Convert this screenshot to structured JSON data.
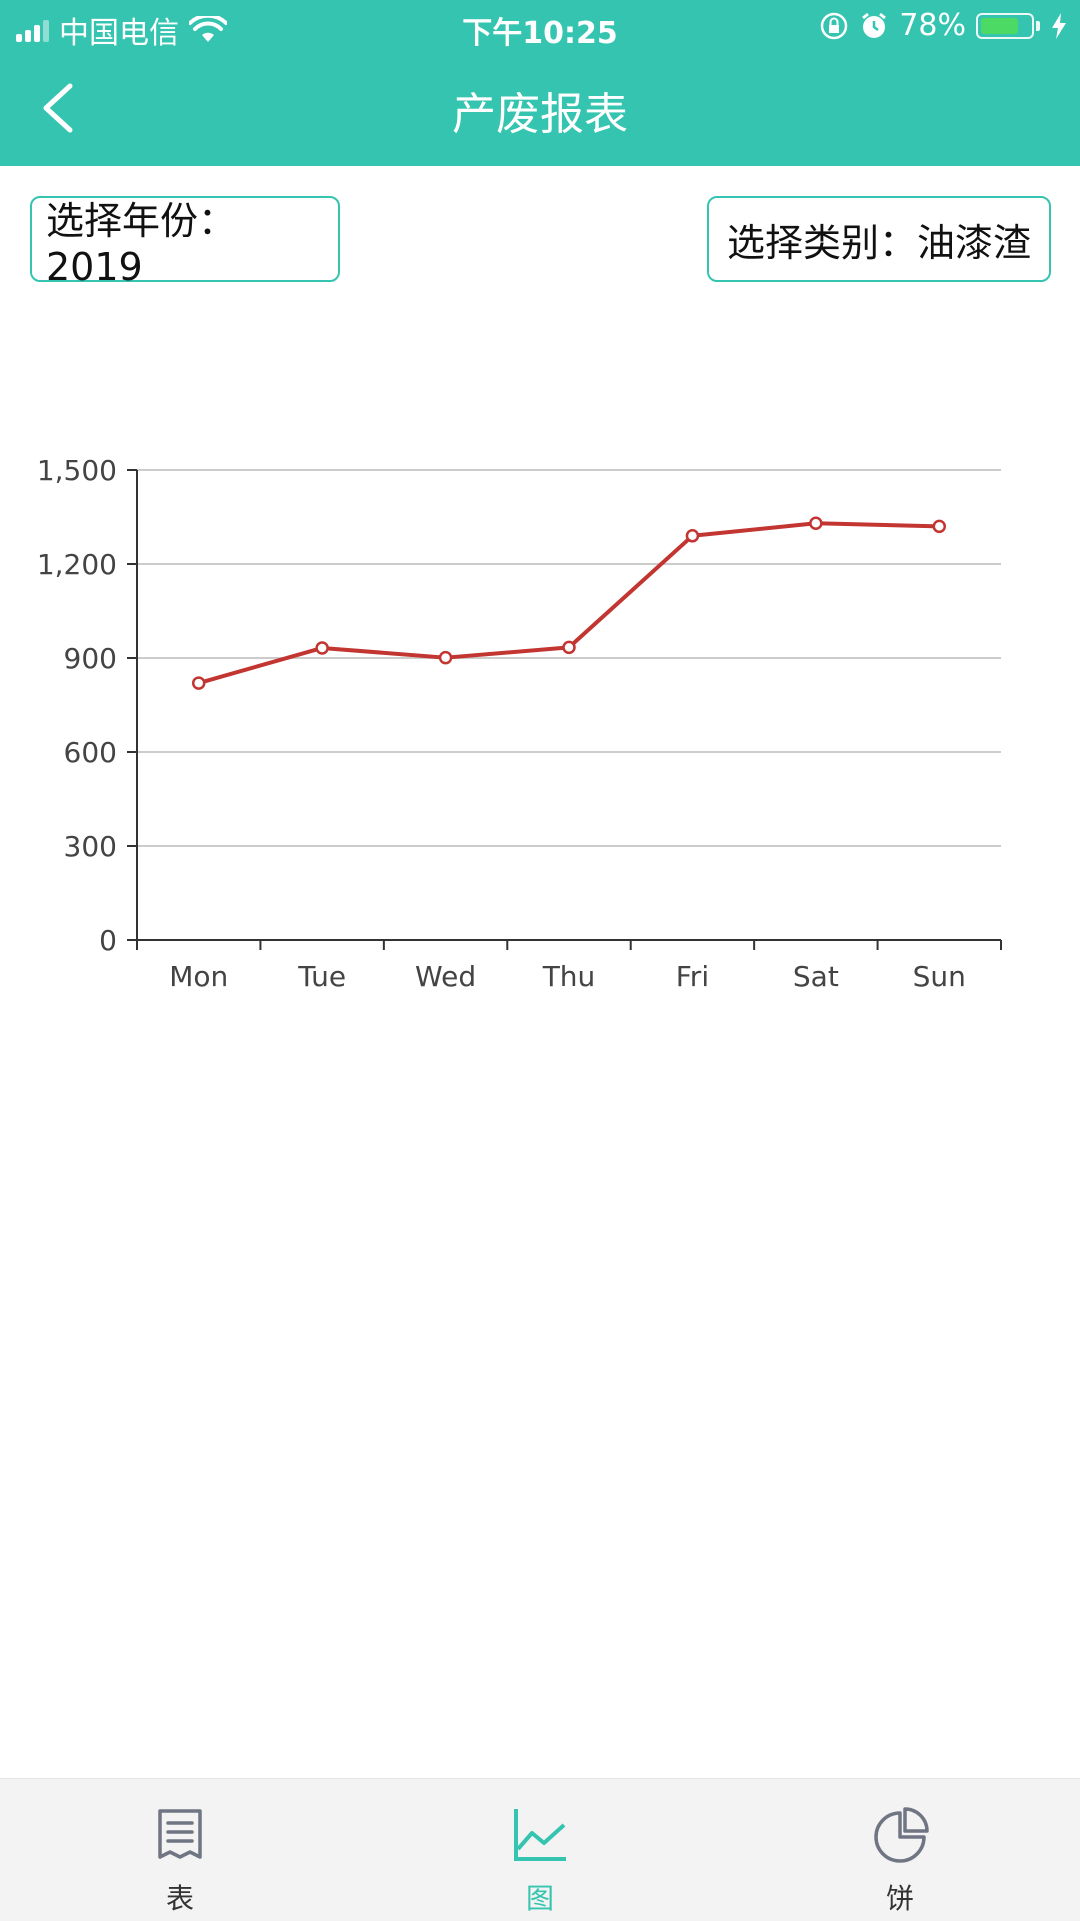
{
  "status_bar": {
    "carrier": "中国电信",
    "time": "下午10:25",
    "battery": "78%",
    "battery_level": 0.78
  },
  "header": {
    "title": "产废报表"
  },
  "filters": {
    "year_label": "选择年份：2019",
    "category_label": "选择类别：油漆渣"
  },
  "chart_data": {
    "type": "line",
    "categories": [
      "Mon",
      "Tue",
      "Wed",
      "Thu",
      "Fri",
      "Sat",
      "Sun"
    ],
    "values": [
      820,
      932,
      901,
      934,
      1290,
      1330,
      1320
    ],
    "ylim": [
      0,
      1500
    ],
    "yticks": [
      "0",
      "300",
      "600",
      "900",
      "1,200",
      "1,500"
    ],
    "grid": true,
    "line_color": "#c23531"
  },
  "tabs": [
    {
      "label": "表",
      "icon": "document-icon",
      "active": false
    },
    {
      "label": "图",
      "icon": "line-chart-icon",
      "active": true
    },
    {
      "label": "饼",
      "icon": "pie-chart-icon",
      "active": false
    }
  ],
  "colors": {
    "accent": "#35c4b0",
    "series": "#c23531"
  }
}
